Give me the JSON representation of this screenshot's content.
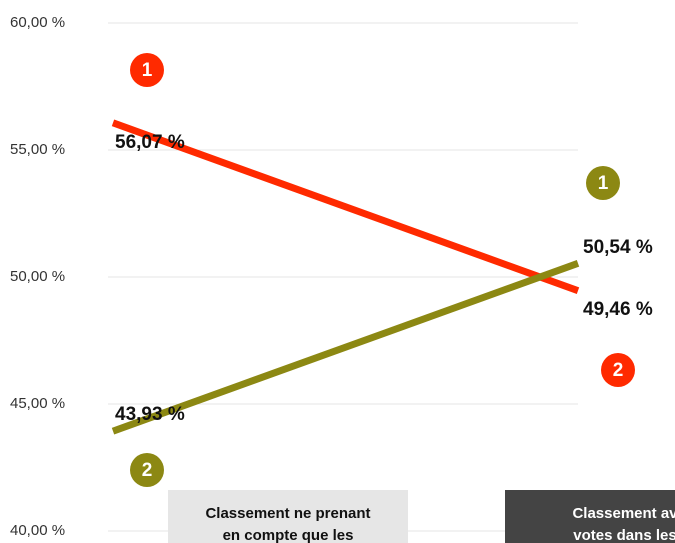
{
  "chart_data": {
    "type": "line",
    "categories": [
      [
        "Classement ne prenant",
        "en compte que les"
      ],
      [
        "Classement av",
        "votes dans les"
      ]
    ],
    "series": [
      {
        "color": "#ff2a00",
        "values": [
          56.07,
          49.46
        ],
        "value_labels": [
          "56,07 %",
          "49,46 %"
        ],
        "badges": [
          "1",
          "2"
        ]
      },
      {
        "color": "#8c8813",
        "values": [
          43.93,
          50.54
        ],
        "value_labels": [
          "43,93 %",
          "50,54 %"
        ],
        "badges": [
          "2",
          "1"
        ]
      }
    ],
    "ylim": [
      40,
      60
    ],
    "yticks": [
      {
        "value": 40,
        "label": "40,00 %"
      },
      {
        "value": 45,
        "label": "45,00 %"
      },
      {
        "value": 50,
        "label": "50,00 %"
      },
      {
        "value": 55,
        "label": "55,00 %"
      },
      {
        "value": 60,
        "label": "60,00 %"
      }
    ],
    "grid": true
  }
}
